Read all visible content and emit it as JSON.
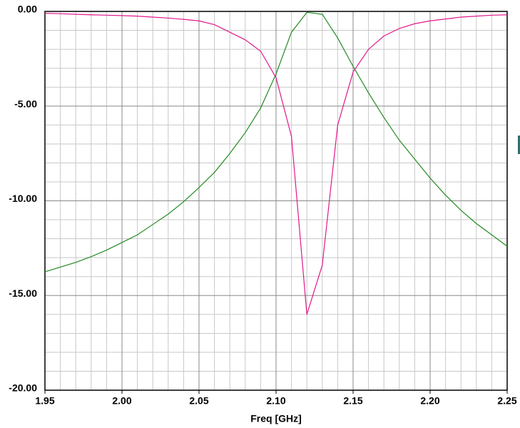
{
  "chart_data": {
    "type": "line",
    "x_label": "Freq [GHz]",
    "x": [
      1.95,
      1.96,
      1.97,
      1.98,
      1.99,
      2.0,
      2.01,
      2.02,
      2.03,
      2.04,
      2.05,
      2.06,
      2.07,
      2.08,
      2.09,
      2.1,
      2.11,
      2.12,
      2.13,
      2.14,
      2.15,
      2.16,
      2.17,
      2.18,
      2.19,
      2.2,
      2.21,
      2.22,
      2.23,
      2.24,
      2.25
    ],
    "series": [
      {
        "color": "#228b22",
        "values": [
          -13.75,
          -13.5,
          -13.25,
          -12.95,
          -12.6,
          -12.2,
          -11.8,
          -11.25,
          -10.7,
          -10.05,
          -9.3,
          -8.5,
          -7.5,
          -6.4,
          -5.1,
          -3.3,
          -1.1,
          -0.05,
          -0.15,
          -1.4,
          -2.9,
          -4.3,
          -5.6,
          -6.8,
          -7.8,
          -8.8,
          -9.7,
          -10.5,
          -11.2,
          -11.8,
          -12.4
        ]
      },
      {
        "color": "#e0198c",
        "values": [
          -0.1,
          -0.12,
          -0.15,
          -0.18,
          -0.2,
          -0.22,
          -0.25,
          -0.3,
          -0.35,
          -0.42,
          -0.5,
          -0.7,
          -1.1,
          -1.5,
          -2.1,
          -3.5,
          -6.6,
          -16.0,
          -13.4,
          -6.0,
          -3.2,
          -2.0,
          -1.3,
          -0.9,
          -0.65,
          -0.5,
          -0.4,
          -0.3,
          -0.25,
          -0.2,
          -0.18
        ]
      }
    ],
    "xlim": [
      1.95,
      2.25
    ],
    "xticks": [
      1.95,
      {
        "value": 2.0,
        "label": "2.00"
      },
      2.05,
      {
        "value": 2.1,
        "label": "2.10"
      },
      2.15,
      {
        "value": 2.2,
        "label": "2.20"
      },
      2.25
    ],
    "ylim": [
      -20,
      0
    ],
    "yticks": [
      {
        "value": -20,
        "label": "-20.00"
      },
      {
        "value": -15,
        "label": "-15.00"
      },
      {
        "value": -10,
        "label": "-10.00"
      },
      {
        "value": -5,
        "label": "-5.00"
      },
      {
        "value": 0,
        "label": "0.00"
      }
    ],
    "grid": true
  }
}
